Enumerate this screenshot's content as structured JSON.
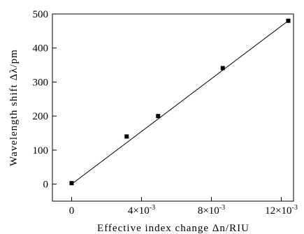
{
  "chart_data": {
    "type": "scatter",
    "title": "",
    "xlabel": "Effective index change Δn/RIU",
    "ylabel": "Wavelength shift Δλ/pm",
    "xlim": [
      -0.0011,
      0.0127
    ],
    "ylim": [
      -50,
      500
    ],
    "xticks": [
      {
        "value": 0,
        "label": "0"
      },
      {
        "value": 0.004,
        "label": "4×10",
        "exp": "-3"
      },
      {
        "value": 0.008,
        "label": "8×10",
        "exp": "-3"
      },
      {
        "value": 0.012,
        "label": "12×10",
        "exp": "-3"
      }
    ],
    "yticks": [
      0,
      100,
      200,
      300,
      400,
      500
    ],
    "grid": false,
    "legend": "none",
    "series": [
      {
        "marker": "square",
        "color": "#000000",
        "x": [
          0,
          0.00315,
          0.00495,
          0.00865,
          0.0124
        ],
        "y": [
          3,
          140,
          200,
          341,
          480
        ]
      }
    ],
    "fit_line": {
      "x": [
        0,
        0.0124
      ],
      "y": [
        0,
        480
      ],
      "color": "#000000"
    }
  }
}
